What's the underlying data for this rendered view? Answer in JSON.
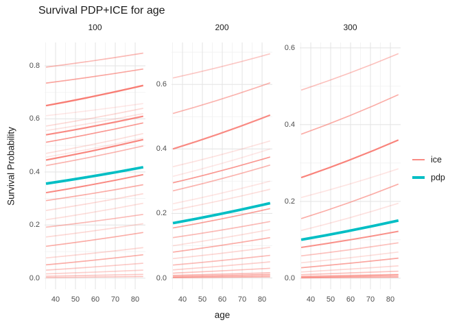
{
  "title": "Survival PDP+ICE for age",
  "chart_data": {
    "type": "line",
    "title": "Survival PDP+ICE for age",
    "xlabel": "age",
    "ylabel": "Survival Probability",
    "x_ticks": [
      40,
      50,
      60,
      70,
      80
    ],
    "x_minor_ticks": [
      35,
      45,
      55,
      65,
      75
    ],
    "x_data_range": [
      35.5,
      83
    ],
    "grid": "on",
    "legend_position": "right",
    "colors": {
      "ice": "#F8766D",
      "pdp": "#00BEC4",
      "grid_major": "#E5E5E5",
      "grid_minor": "#F2F2F2",
      "tick_text": "#4d4d4d",
      "text": "#1a1a1a"
    },
    "legend": [
      {
        "label": "ice",
        "color": "#F8766D",
        "thickness": 2.5
      },
      {
        "label": "pdp",
        "color": "#00BEC4",
        "thickness": 4
      }
    ],
    "panels": [
      {
        "facet": "100",
        "y_ticks": [
          0.0,
          0.2,
          0.4,
          0.6,
          0.8
        ],
        "y_minor_ticks": [
          0.1,
          0.3,
          0.5,
          0.7
        ],
        "y_top": 0.888,
        "y_bottom": -0.042,
        "pdp": [
          0.356,
          0.418
        ],
        "ice": [
          [
            0.795,
            0.848,
            0.5
          ],
          [
            0.735,
            0.788,
            0.65
          ],
          [
            0.65,
            0.726,
            0.95,
            2.4
          ],
          [
            0.612,
            0.658,
            0.18
          ],
          [
            0.573,
            0.64,
            0.28
          ],
          [
            0.556,
            0.62,
            0.22
          ],
          [
            0.54,
            0.61,
            0.85,
            2.2
          ],
          [
            0.512,
            0.585,
            0.75
          ],
          [
            0.47,
            0.545,
            0.25
          ],
          [
            0.456,
            0.528,
            0.18
          ],
          [
            0.445,
            0.522,
            0.88,
            2.2
          ],
          [
            0.424,
            0.498,
            0.55
          ],
          [
            0.322,
            0.39,
            0.85,
            2.0
          ],
          [
            0.292,
            0.352,
            0.6
          ],
          [
            0.255,
            0.318,
            0.28
          ],
          [
            0.22,
            0.282,
            0.25
          ],
          [
            0.192,
            0.24,
            0.5
          ],
          [
            0.155,
            0.205,
            0.28
          ],
          [
            0.12,
            0.172,
            0.6
          ],
          [
            0.076,
            0.115,
            0.3
          ],
          [
            0.05,
            0.088,
            0.6
          ],
          [
            0.03,
            0.056,
            0.4
          ],
          [
            0.016,
            0.03,
            0.35
          ],
          [
            0.007,
            0.014,
            0.4
          ],
          [
            0.002,
            0.006,
            0.45
          ]
        ]
      },
      {
        "facet": "200",
        "y_ticks": [
          0.0,
          0.2,
          0.4,
          0.6
        ],
        "y_minor_ticks": [
          0.1,
          0.3,
          0.5,
          0.7
        ],
        "y_top": 0.73,
        "y_bottom": -0.035,
        "pdp": [
          0.17,
          0.232
        ],
        "ice": [
          [
            0.62,
            0.695,
            0.4
          ],
          [
            0.51,
            0.605,
            0.55
          ],
          [
            0.4,
            0.505,
            0.85,
            2.2
          ],
          [
            0.345,
            0.425,
            0.22
          ],
          [
            0.315,
            0.4,
            0.18
          ],
          [
            0.295,
            0.375,
            0.75
          ],
          [
            0.27,
            0.35,
            0.55
          ],
          [
            0.23,
            0.3,
            0.2
          ],
          [
            0.21,
            0.275,
            0.25
          ],
          [
            0.155,
            0.215,
            0.7
          ],
          [
            0.125,
            0.175,
            0.5
          ],
          [
            0.1,
            0.15,
            0.25
          ],
          [
            0.08,
            0.125,
            0.6
          ],
          [
            0.06,
            0.095,
            0.3
          ],
          [
            0.04,
            0.07,
            0.5
          ],
          [
            0.025,
            0.05,
            0.35
          ],
          [
            0.015,
            0.03,
            0.45
          ],
          [
            0.008,
            0.016,
            0.5
          ],
          [
            0.004,
            0.01,
            0.55,
            2.5
          ],
          [
            0.001,
            0.004,
            0.6,
            2.0
          ]
        ]
      },
      {
        "facet": "300",
        "y_ticks": [
          0.0,
          0.2,
          0.4,
          0.6
        ],
        "y_minor_ticks": [
          0.1,
          0.3,
          0.5
        ],
        "y_top": 0.614,
        "y_bottom": -0.029,
        "pdp": [
          0.1,
          0.15
        ],
        "ice": [
          [
            0.49,
            0.585,
            0.45
          ],
          [
            0.375,
            0.478,
            0.6
          ],
          [
            0.262,
            0.36,
            0.9,
            2.2
          ],
          [
            0.21,
            0.285,
            0.2
          ],
          [
            0.155,
            0.245,
            0.6
          ],
          [
            0.124,
            0.195,
            0.22
          ],
          [
            0.08,
            0.122,
            0.8,
            2.0
          ],
          [
            0.058,
            0.092,
            0.45
          ],
          [
            0.04,
            0.068,
            0.25
          ],
          [
            0.027,
            0.052,
            0.65
          ],
          [
            0.016,
            0.032,
            0.3
          ],
          [
            0.009,
            0.018,
            0.45
          ],
          [
            0.005,
            0.01,
            0.3
          ],
          [
            0.003,
            0.008,
            0.6,
            2.5
          ],
          [
            0.001,
            0.003,
            0.65,
            2.0
          ]
        ]
      }
    ]
  },
  "layout_labels": {
    "x_tick_labels": [
      "40",
      "50",
      "60",
      "70",
      "80"
    ],
    "panel1_y_labels": [
      "0.0",
      "0.2",
      "0.4",
      "0.6",
      "0.8"
    ],
    "panel2_y_labels": [
      "0.0",
      "0.2",
      "0.4",
      "0.6"
    ],
    "panel3_y_labels": [
      "0.0",
      "0.2",
      "0.4",
      "0.6"
    ]
  }
}
